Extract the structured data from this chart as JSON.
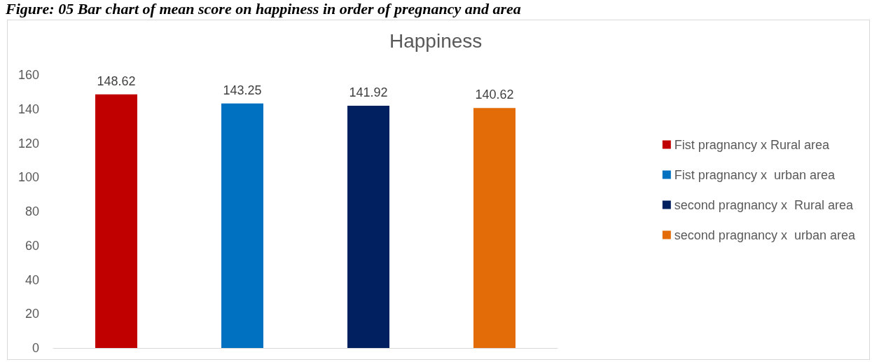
{
  "chart_data": {
    "type": "bar",
    "title": "Happiness",
    "annotations": [
      "Figure: 05 Bar chart of mean score on happiness in order of pregnancy and area"
    ],
    "categories": [
      null,
      null,
      null,
      null
    ],
    "series": [
      {
        "name": "Fist pragnancy x Rural area",
        "color": "#c00000",
        "values": [
          148.62,
          null,
          null,
          null
        ]
      },
      {
        "name": "Fist pragnancy x  urban area",
        "color": "#0070c0",
        "values": [
          null,
          143.25,
          null,
          null
        ]
      },
      {
        "name": "second pragnancy x  Rural area",
        "color": "#002060",
        "values": [
          null,
          null,
          141.92,
          null
        ]
      },
      {
        "name": "second pragnancy x  urban area",
        "color": "#e36c09",
        "values": [
          null,
          null,
          null,
          140.62
        ]
      }
    ],
    "ylim": [
      0,
      160
    ],
    "yticks": [
      0,
      20,
      40,
      60,
      80,
      100,
      120,
      140,
      160
    ],
    "grid": false,
    "legend": "right",
    "data_labels": true
  }
}
